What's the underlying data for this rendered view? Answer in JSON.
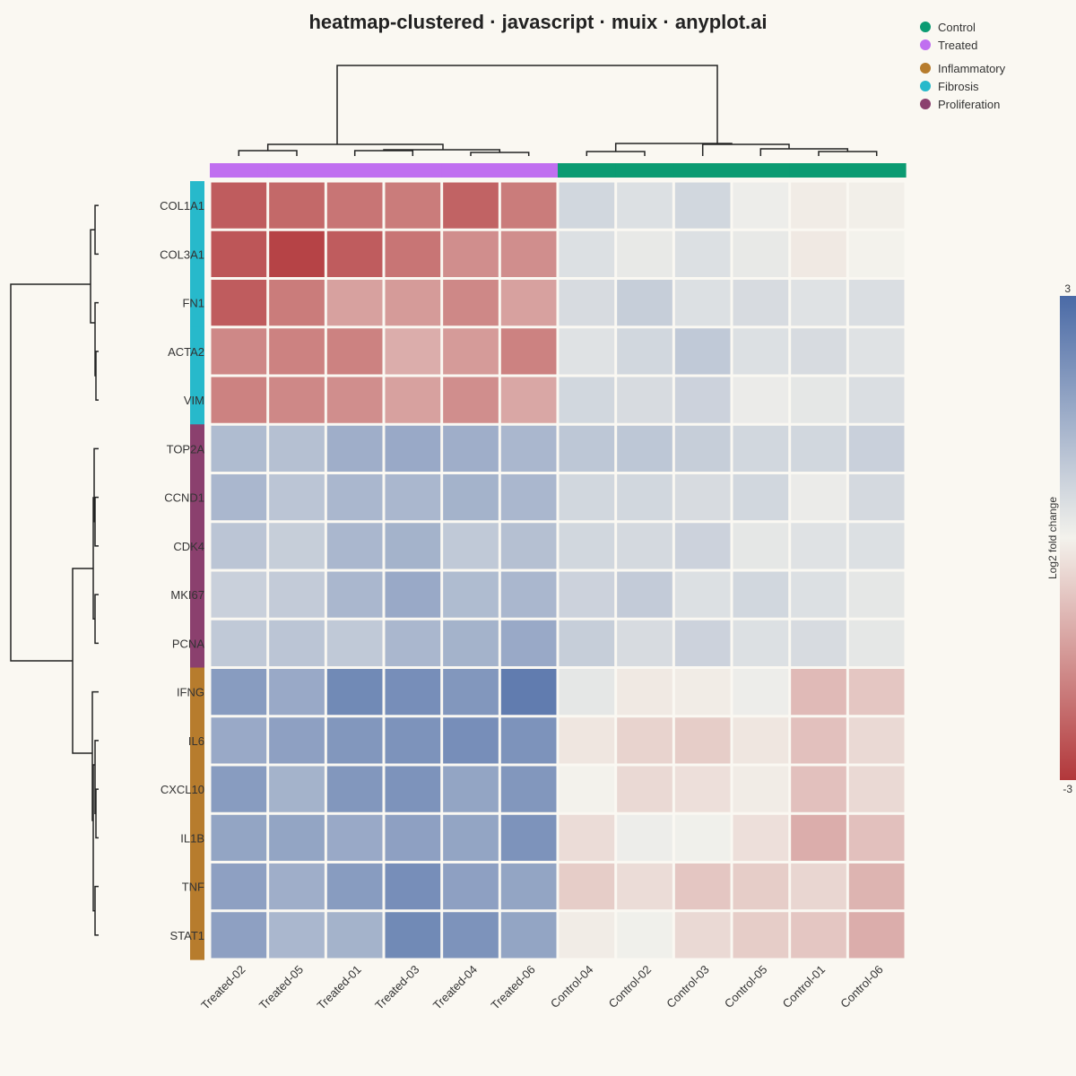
{
  "chart_data": {
    "type": "heatmap",
    "title": "heatmap-clustered · javascript · muix · anyplot.ai",
    "rows": [
      "COL1A1",
      "COL3A1",
      "FN1",
      "ACTA2",
      "VIM",
      "TOP2A",
      "CCND1",
      "CDK4",
      "MKI67",
      "PCNA",
      "IFNG",
      "IL6",
      "CXCL10",
      "IL1B",
      "TNF",
      "STAT1"
    ],
    "row_groups": [
      "Fibrosis",
      "Fibrosis",
      "Fibrosis",
      "Fibrosis",
      "Fibrosis",
      "Proliferation",
      "Proliferation",
      "Proliferation",
      "Proliferation",
      "Proliferation",
      "Inflammatory",
      "Inflammatory",
      "Inflammatory",
      "Inflammatory",
      "Inflammatory",
      "Inflammatory"
    ],
    "columns": [
      "Treated-02",
      "Treated-05",
      "Treated-01",
      "Treated-03",
      "Treated-04",
      "Treated-06",
      "Control-04",
      "Control-02",
      "Control-03",
      "Control-05",
      "Control-01",
      "Control-06"
    ],
    "column_groups": [
      "Treated",
      "Treated",
      "Treated",
      "Treated",
      "Treated",
      "Treated",
      "Control",
      "Control",
      "Control",
      "Control",
      "Control",
      "Control"
    ],
    "values": [
      [
        -2.4,
        -2.2,
        -2.0,
        -1.9,
        -2.3,
        -1.9,
        0.6,
        0.4,
        0.6,
        0.1,
        -0.1,
        -0.05
      ],
      [
        -2.5,
        -2.8,
        -2.4,
        -2.0,
        -1.6,
        -1.6,
        0.4,
        0.2,
        0.4,
        0.2,
        -0.15,
        0.0
      ],
      [
        -2.4,
        -1.9,
        -1.3,
        -1.4,
        -1.7,
        -1.3,
        0.5,
        0.8,
        0.4,
        0.5,
        0.35,
        0.45
      ],
      [
        -1.7,
        -1.8,
        -1.8,
        -1.1,
        -1.4,
        -1.8,
        0.35,
        0.6,
        0.9,
        0.4,
        0.5,
        0.35
      ],
      [
        -1.8,
        -1.7,
        -1.6,
        -1.3,
        -1.6,
        -1.2,
        0.6,
        0.5,
        0.7,
        0.15,
        0.25,
        0.45
      ],
      [
        1.2,
        1.1,
        1.5,
        1.6,
        1.5,
        1.3,
        0.95,
        0.95,
        0.8,
        0.6,
        0.6,
        0.75
      ],
      [
        1.3,
        1.0,
        1.3,
        1.3,
        1.4,
        1.3,
        0.6,
        0.6,
        0.5,
        0.6,
        0.15,
        0.55
      ],
      [
        1.0,
        0.8,
        1.3,
        1.4,
        0.9,
        1.1,
        0.6,
        0.55,
        0.7,
        0.25,
        0.35,
        0.4
      ],
      [
        0.75,
        0.85,
        1.3,
        1.6,
        1.2,
        1.3,
        0.7,
        0.85,
        0.4,
        0.6,
        0.4,
        0.25
      ],
      [
        0.9,
        1.0,
        0.9,
        1.3,
        1.4,
        1.6,
        0.8,
        0.5,
        0.7,
        0.4,
        0.5,
        0.25
      ],
      [
        1.9,
        1.6,
        2.3,
        2.2,
        2.0,
        2.6,
        0.25,
        -0.15,
        -0.1,
        0.1,
        -0.9,
        -0.7
      ],
      [
        1.6,
        1.8,
        2.0,
        2.1,
        2.2,
        2.1,
        -0.2,
        -0.5,
        -0.6,
        -0.2,
        -0.8,
        -0.4
      ],
      [
        1.9,
        1.4,
        2.0,
        2.1,
        1.7,
        2.0,
        0.0,
        -0.4,
        -0.3,
        -0.1,
        -0.8,
        -0.4
      ],
      [
        1.7,
        1.7,
        1.6,
        1.8,
        1.7,
        2.1,
        -0.35,
        0.1,
        0.05,
        -0.3,
        -1.1,
        -0.8
      ],
      [
        1.8,
        1.5,
        1.9,
        2.2,
        1.8,
        1.7,
        -0.6,
        -0.35,
        -0.7,
        -0.6,
        -0.45,
        -1.0
      ],
      [
        1.8,
        1.3,
        1.4,
        2.3,
        2.1,
        1.7,
        -0.1,
        0.05,
        -0.4,
        -0.6,
        -0.7,
        -1.1
      ]
    ],
    "colorbar": {
      "label": "Log2 fold change",
      "min": -3,
      "max": 3,
      "min_label": "-3",
      "max_label": "3",
      "low_color": "#b2373a",
      "mid_color": "#f3f2ec",
      "high_color": "#4a6aa6"
    },
    "legend": {
      "placement": "top-right",
      "sample_groups": [
        {
          "name": "Control",
          "color": "#0b9b72"
        },
        {
          "name": "Treated",
          "color": "#c06ff0"
        }
      ],
      "gene_groups": [
        {
          "name": "Inflammatory",
          "color": "#b77c2d"
        },
        {
          "name": "Fibrosis",
          "color": "#27b9cb"
        },
        {
          "name": "Proliferation",
          "color": "#8b406e"
        }
      ]
    }
  }
}
